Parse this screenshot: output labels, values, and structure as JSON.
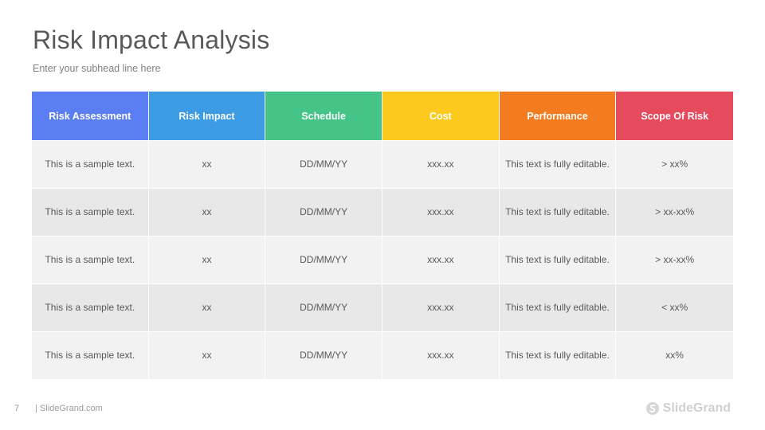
{
  "slide": {
    "title": "Risk Impact Analysis",
    "subhead": "Enter your subhead  line here"
  },
  "table": {
    "headers": [
      {
        "label": "Risk Assessment",
        "color": "#5b7ff2"
      },
      {
        "label": "Risk Impact",
        "color": "#3d9be3"
      },
      {
        "label": "Schedule",
        "color": "#44c486"
      },
      {
        "label": "Cost",
        "color": "#fcca1f"
      },
      {
        "label": "Performance",
        "color": "#f47c20"
      },
      {
        "label": "Scope Of Risk",
        "color": "#e64a5d"
      }
    ],
    "rows": [
      [
        "This is a sample text.",
        "xx",
        "DD/MM/YY",
        "xxx.xx",
        "This text is fully editable.",
        "> xx%"
      ],
      [
        "This is a sample text.",
        "xx",
        "DD/MM/YY",
        "xxx.xx",
        "This text is fully editable.",
        "> xx-xx%"
      ],
      [
        "This is a sample text.",
        "xx",
        "DD/MM/YY",
        "xxx.xx",
        "This text is fully editable.",
        "> xx-xx%"
      ],
      [
        "This is a sample text.",
        "xx",
        "DD/MM/YY",
        "xxx.xx",
        "This text is fully editable.",
        "< xx%"
      ],
      [
        "This is a sample text.",
        "xx",
        "DD/MM/YY",
        "xxx.xx",
        "This text is fully editable.",
        "xx%"
      ]
    ]
  },
  "footer": {
    "page_number": "7",
    "site": "| SlideGrand.com",
    "logo_text": "SlideGrand",
    "logo_icon": "slidegrand-logo-icon"
  }
}
